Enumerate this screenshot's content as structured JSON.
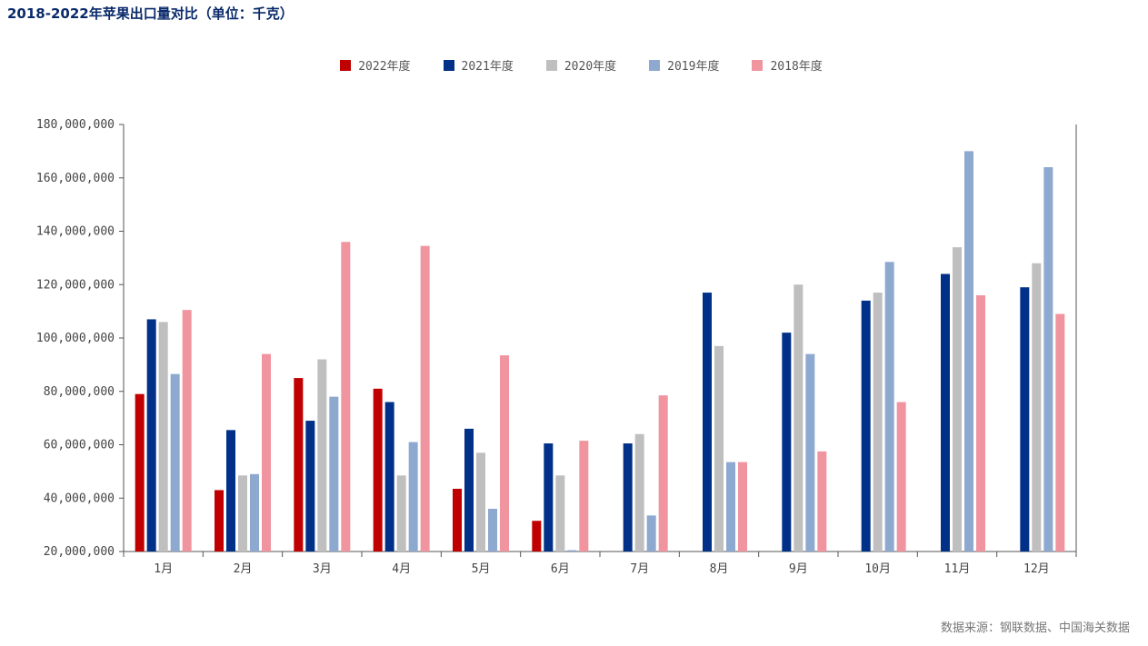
{
  "title": "2018-2022年苹果出口量对比（单位：千克）",
  "source": "数据来源：钢联数据、中国海关数据",
  "chart_data": {
    "type": "bar",
    "title": "2018-2022年苹果出口量对比（单位：千克）",
    "xlabel": "",
    "ylabel": "",
    "ylim": [
      20000000,
      180000000
    ],
    "yticks": [
      20000000,
      40000000,
      60000000,
      80000000,
      100000000,
      120000000,
      140000000,
      160000000,
      180000000
    ],
    "ytick_labels": [
      "20,000,000",
      "40,000,000",
      "60,000,000",
      "80,000,000",
      "100,000,000",
      "120,000,000",
      "140,000,000",
      "160,000,000",
      "180,000,000"
    ],
    "legend_position": "top-center",
    "categories": [
      "1月",
      "2月",
      "3月",
      "4月",
      "5月",
      "6月",
      "7月",
      "8月",
      "9月",
      "10月",
      "11月",
      "12月"
    ],
    "series": [
      {
        "name": "2022年度",
        "color": "#c00000",
        "values": [
          79000000,
          43000000,
          85000000,
          81000000,
          43500000,
          31500000,
          null,
          null,
          null,
          null,
          null,
          null
        ]
      },
      {
        "name": "2021年度",
        "color": "#003087",
        "values": [
          107000000,
          65500000,
          69000000,
          76000000,
          66000000,
          60500000,
          60500000,
          117000000,
          102000000,
          114000000,
          124000000,
          119000000
        ]
      },
      {
        "name": "2020年度",
        "color": "#bfbfbf",
        "values": [
          106000000,
          48500000,
          92000000,
          48500000,
          57000000,
          48500000,
          64000000,
          97000000,
          120000000,
          117000000,
          134000000,
          128000000
        ]
      },
      {
        "name": "2019年度",
        "color": "#8ea9cf",
        "values": [
          86500000,
          49000000,
          78000000,
          61000000,
          36000000,
          20500000,
          33500000,
          53500000,
          94000000,
          128500000,
          170000000,
          164000000
        ]
      },
      {
        "name": "2018年度",
        "color": "#f0949f",
        "values": [
          110500000,
          94000000,
          136000000,
          134500000,
          93500000,
          61500000,
          78500000,
          53500000,
          57500000,
          76000000,
          116000000,
          109000000
        ]
      }
    ]
  }
}
